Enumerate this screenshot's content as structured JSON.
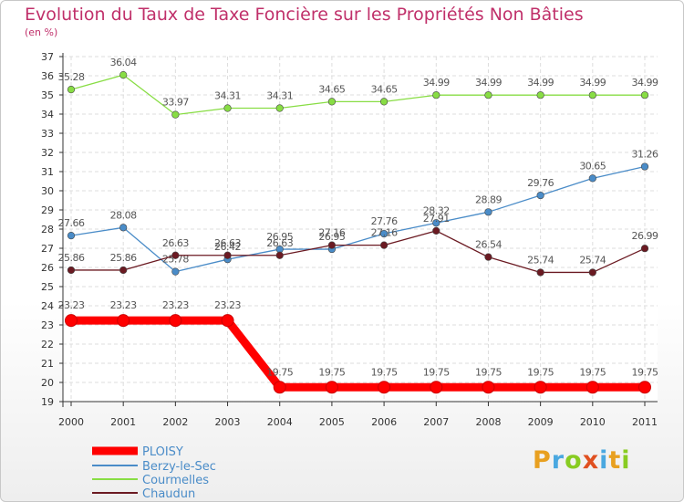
{
  "chart_data": {
    "type": "line",
    "title": "Evolution du Taux de Taxe Foncière sur les Propriétés Non Bâties",
    "ylabel": "(en %)",
    "xlabel": "",
    "x": [
      "2000",
      "2001",
      "2002",
      "2003",
      "2004",
      "2005",
      "2006",
      "2007",
      "2008",
      "2009",
      "2010",
      "2011"
    ],
    "ylim": [
      19,
      37
    ],
    "yticks": [
      "19",
      "20",
      "21",
      "22",
      "23",
      "24",
      "25",
      "26",
      "27",
      "28",
      "29",
      "30",
      "31",
      "32",
      "33",
      "34",
      "35",
      "36",
      "37"
    ],
    "grid": true,
    "series": [
      {
        "name": "PLOISY",
        "color": "#ff0000",
        "values": [
          23.23,
          23.23,
          23.23,
          23.23,
          19.75,
          19.75,
          19.75,
          19.75,
          19.75,
          19.75,
          19.75,
          19.75
        ],
        "labels": [
          "23.23",
          "23.23",
          "23.23",
          "23.23",
          "19.75",
          "19.75",
          "19.75",
          "19.75",
          "19.75",
          "19.75",
          "19.75",
          "19.75"
        ]
      },
      {
        "name": "Berzy-le-Sec",
        "color": "#4a8cc8",
        "values": [
          27.66,
          28.08,
          25.78,
          26.42,
          26.95,
          26.95,
          27.76,
          28.32,
          28.89,
          29.76,
          30.65,
          31.26
        ],
        "labels": [
          "27.66",
          "28.08",
          "25.78",
          "26.42",
          "26.95",
          "26.95",
          "27.76",
          "28.32",
          "28.89",
          "29.76",
          "30.65",
          "31.26"
        ]
      },
      {
        "name": "Courmelles",
        "color": "#88dd44",
        "values": [
          35.28,
          36.04,
          33.97,
          34.31,
          34.31,
          34.65,
          34.65,
          34.99,
          34.99,
          34.99,
          34.99,
          34.99
        ],
        "labels": [
          "35.28",
          "36.04",
          "33.97",
          "34.31",
          "34.31",
          "34.65",
          "34.65",
          "34.99",
          "34.99",
          "34.99",
          "34.99",
          "34.99"
        ]
      },
      {
        "name": "Chaudun",
        "color": "#6b1a22",
        "values": [
          25.86,
          25.86,
          26.63,
          26.63,
          26.63,
          27.16,
          27.16,
          27.91,
          26.54,
          25.74,
          25.74,
          26.99
        ],
        "labels": [
          "25.86",
          "25.86",
          "26.63",
          "26.63",
          "26.63",
          "27.16",
          "27.16",
          "27.91",
          "26.54",
          "25.74",
          "25.74",
          "26.99"
        ]
      }
    ]
  },
  "brand": {
    "text": "Proxiti"
  }
}
